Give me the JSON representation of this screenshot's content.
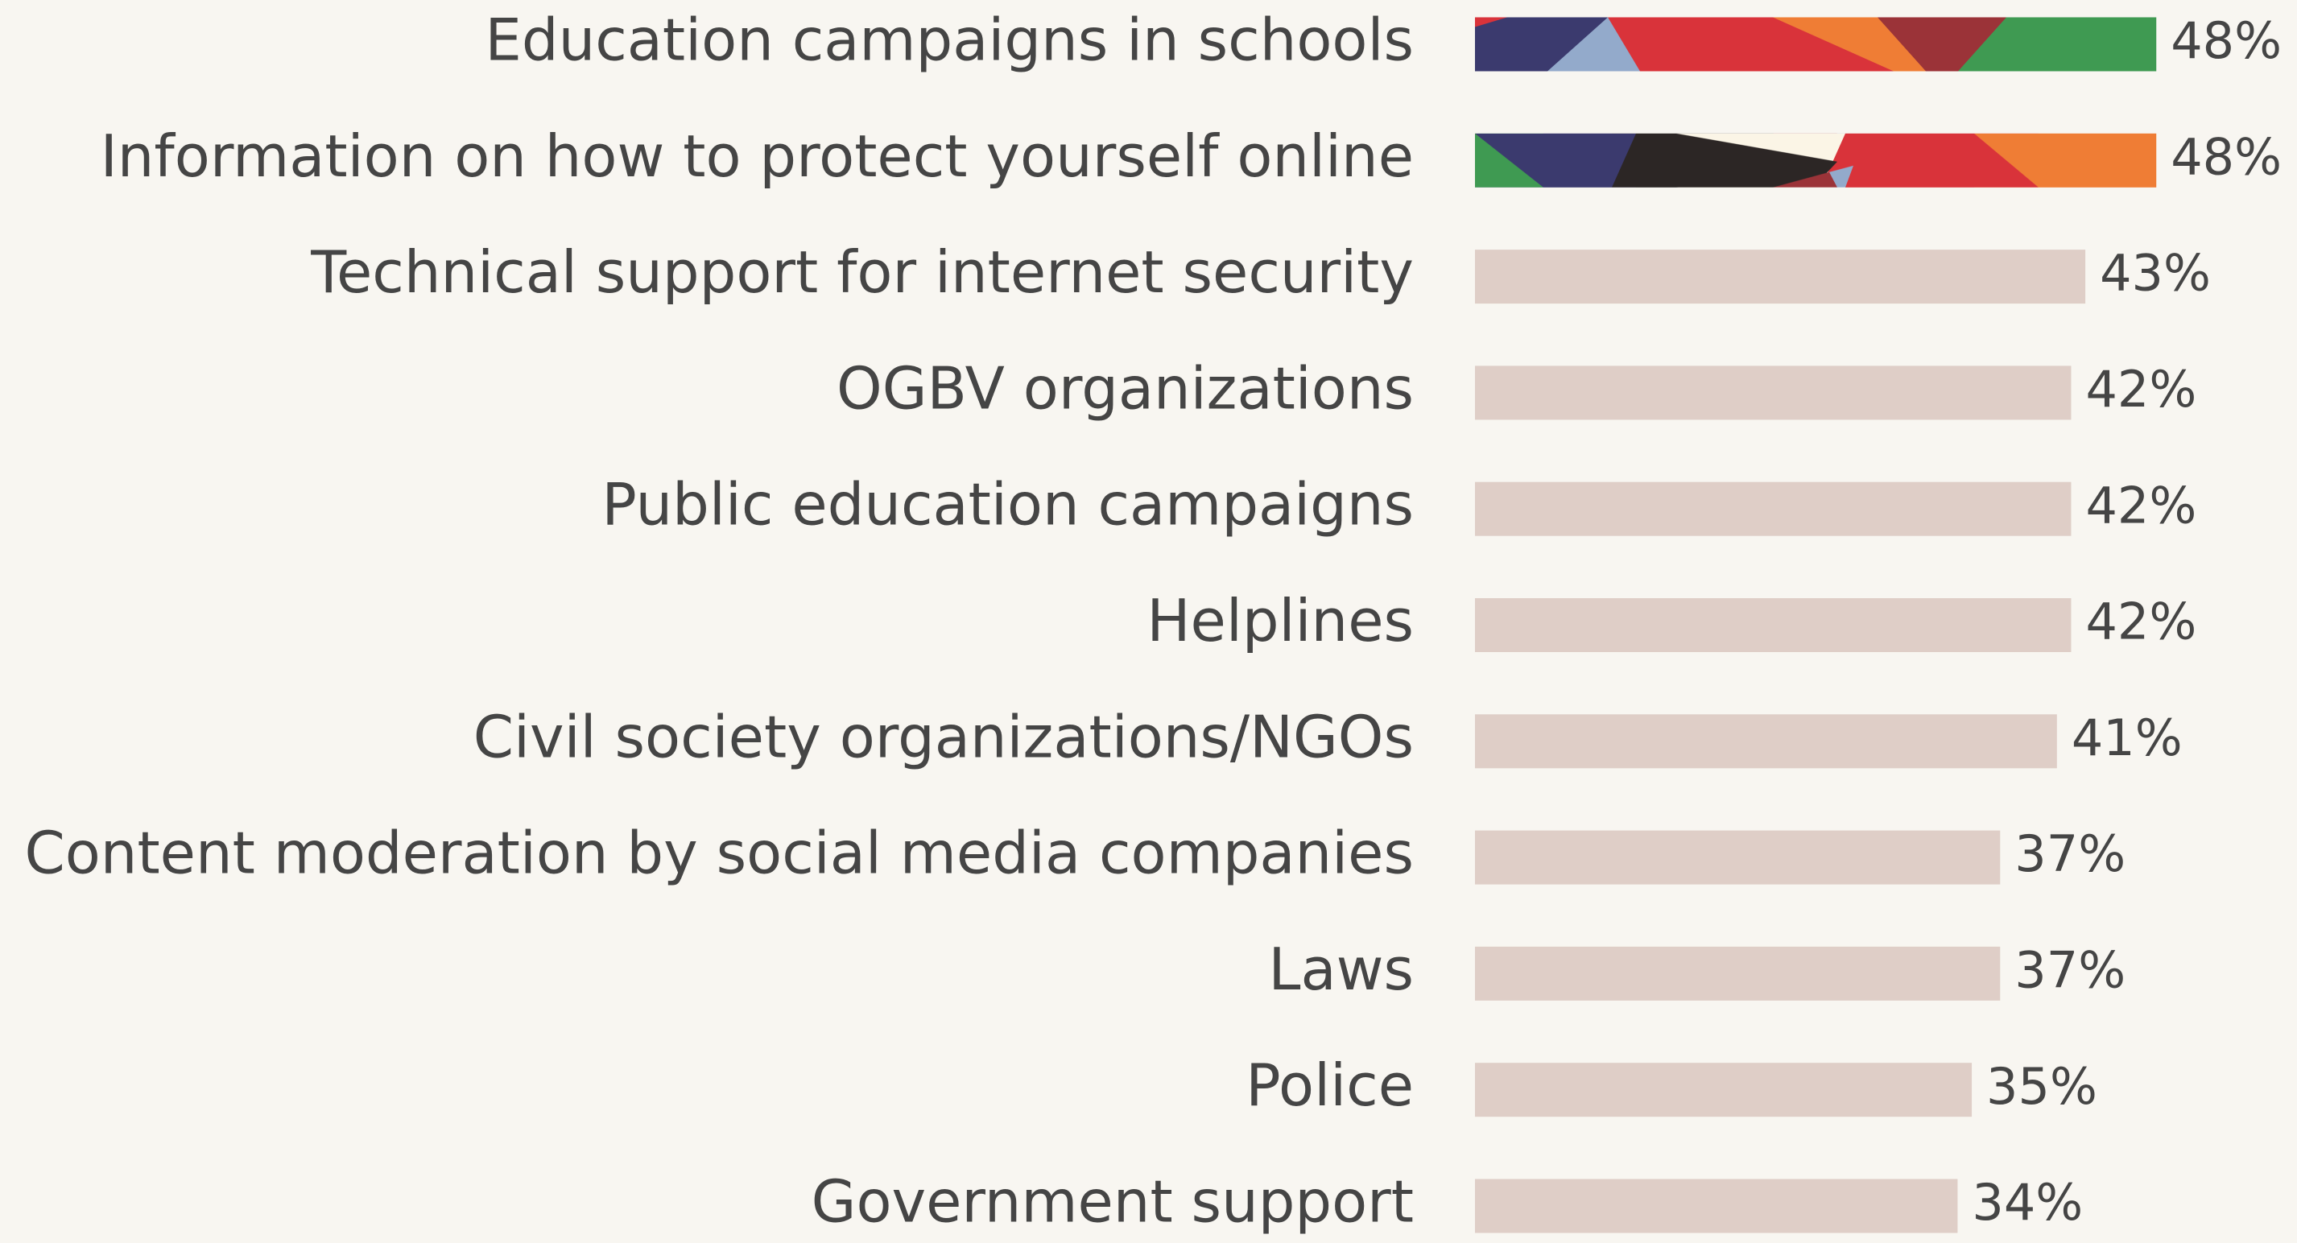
{
  "chart_data": {
    "type": "bar",
    "orientation": "horizontal",
    "categories": [
      "Education campaigns in schools",
      "Information on how to protect yourself online",
      "Technical support for internet security",
      "OGBV organizations",
      "Public education campaigns",
      "Helplines",
      "Civil society organizations/NGOs",
      "Content moderation by social media companies",
      "Laws",
      "Police",
      "Government support"
    ],
    "values": [
      48,
      48,
      43,
      42,
      42,
      42,
      41,
      37,
      37,
      35,
      34
    ],
    "value_labels": [
      "48%",
      "48%",
      "43%",
      "42%",
      "42%",
      "42%",
      "41%",
      "37%",
      "37%",
      "35%",
      "34%"
    ],
    "color": "#dfcec7"
  }
}
